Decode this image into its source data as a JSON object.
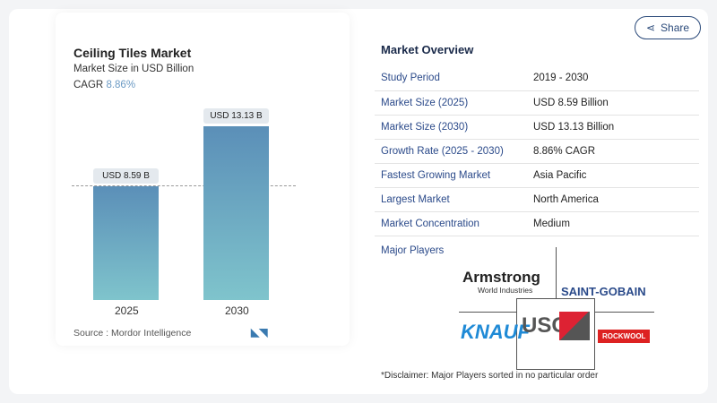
{
  "chart": {
    "title": "Ceiling Tiles Market",
    "subtitle": "Market Size in USD Billion",
    "cagr_label": "CAGR",
    "cagr_value": "8.86%",
    "source": "Source :  Mordor Intelligence"
  },
  "chart_data": {
    "type": "bar",
    "categories": [
      "2025",
      "2030"
    ],
    "values": [
      8.59,
      13.13
    ],
    "data_labels": [
      "USD 8.59 B",
      "USD 13.13 B"
    ],
    "ylabel": "Market Size in USD Billion",
    "ylim": [
      0,
      15
    ]
  },
  "share_label": "Share",
  "overview": {
    "title": "Market Overview",
    "rows": [
      {
        "k": "Study Period",
        "v": "2019 - 2030"
      },
      {
        "k": "Market Size (2025)",
        "v": "USD 8.59 Billion"
      },
      {
        "k": "Market Size (2030)",
        "v": "USD 13.13 Billion"
      },
      {
        "k": "Growth Rate (2025 - 2030)",
        "v": "8.86% CAGR"
      },
      {
        "k": "Fastest Growing Market",
        "v": "Asia Pacific"
      },
      {
        "k": "Largest Market",
        "v": "North America"
      },
      {
        "k": "Market Concentration",
        "v": "Medium"
      }
    ]
  },
  "players": {
    "title": "Major Players",
    "logos": [
      "Armstrong",
      "World Industries",
      "SAINT-GOBAIN",
      "KNAUF",
      "USG",
      "ROCKWOOL"
    ]
  },
  "disclaimer": "*Disclaimer: Major Players sorted in no particular order"
}
